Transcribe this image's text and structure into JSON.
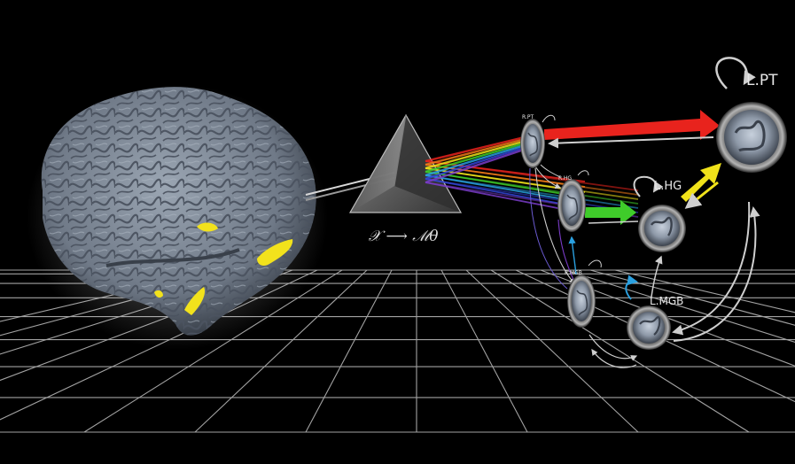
{
  "formula": "𝒳 ⟶ ℳθ",
  "nodes": {
    "l_pt": "L.PT",
    "l_hg": "L.HG",
    "l_mgb": "L.MGB",
    "r_pt": "R.PT",
    "r_hg": "R.HG",
    "r_mgb": "R.MGB"
  },
  "colors": {
    "background": "#000000",
    "brain": "#7d8794",
    "activation": "#f2e21c",
    "grid": "#bfbfbf",
    "red_arrow": "#e8231d",
    "green_arrow": "#3fcc2a",
    "yellow_arrow": "#f0e21a",
    "blue_arrow": "#2aa0e0",
    "node_ring": "#8a8a8a"
  },
  "spectrum_colors": [
    "#e8231d",
    "#f07a18",
    "#f0e21a",
    "#3fcc2a",
    "#2aa0e0",
    "#3346d6",
    "#7a3cc8"
  ]
}
